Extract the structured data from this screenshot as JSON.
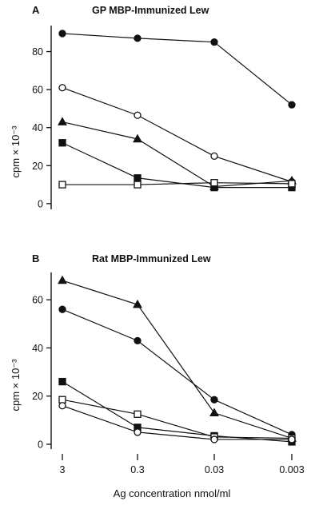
{
  "figure": {
    "xlabel": "Ag concentration nmol/ml"
  },
  "chart_data": [
    {
      "type": "line",
      "panel": "A",
      "title": "GP MBP-Immunized Lew",
      "ylabel": "cpm × 10⁻³",
      "x_categories": [
        "3",
        "0.3",
        "0.03",
        "0.003"
      ],
      "x": [
        3,
        0.3,
        0.03,
        0.003
      ],
      "x_scale": "log",
      "ylim": [
        -3,
        92
      ],
      "yticks": [
        0,
        20,
        40,
        60,
        80
      ],
      "grid": false,
      "legend": "none",
      "series": [
        {
          "marker": "filled-circle",
          "values": [
            89.5,
            87,
            85,
            52
          ]
        },
        {
          "marker": "open-circle",
          "values": [
            61,
            46.5,
            25,
            11.5
          ]
        },
        {
          "marker": "filled-triangle",
          "values": [
            43,
            34,
            9,
            12
          ]
        },
        {
          "marker": "filled-square",
          "values": [
            32,
            13.5,
            8.5,
            8.5
          ]
        },
        {
          "marker": "open-square",
          "values": [
            10,
            10,
            11,
            10.5
          ]
        }
      ]
    },
    {
      "type": "line",
      "panel": "B",
      "title": "Rat MBP-Immunized Lew",
      "ylabel": "cpm × 10⁻³",
      "x_categories": [
        "3",
        "0.3",
        "0.03",
        "0.003"
      ],
      "x": [
        3,
        0.3,
        0.03,
        0.003
      ],
      "x_scale": "log",
      "ylim": [
        -2,
        70
      ],
      "yticks": [
        0,
        20,
        40,
        60
      ],
      "grid": false,
      "legend": "none",
      "series": [
        {
          "marker": "filled-triangle",
          "values": [
            68,
            58,
            13,
            2.5
          ]
        },
        {
          "marker": "filled-circle",
          "values": [
            56,
            43,
            18.5,
            4
          ]
        },
        {
          "marker": "filled-square",
          "values": [
            26,
            7,
            3.5,
            1
          ]
        },
        {
          "marker": "open-square",
          "values": [
            18.5,
            12.5,
            3,
            2.5
          ]
        },
        {
          "marker": "open-circle",
          "values": [
            16,
            5,
            2,
            2
          ]
        }
      ]
    }
  ]
}
